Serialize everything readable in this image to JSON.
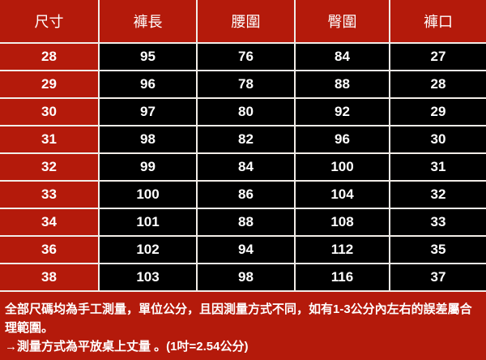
{
  "table": {
    "headers": [
      "尺寸",
      "褲長",
      "腰圍",
      "臀圍",
      "褲口"
    ],
    "rows": [
      [
        "28",
        "95",
        "76",
        "84",
        "27"
      ],
      [
        "29",
        "96",
        "78",
        "88",
        "28"
      ],
      [
        "30",
        "97",
        "80",
        "92",
        "29"
      ],
      [
        "31",
        "98",
        "82",
        "96",
        "30"
      ],
      [
        "32",
        "99",
        "84",
        "100",
        "31"
      ],
      [
        "33",
        "100",
        "86",
        "104",
        "32"
      ],
      [
        "34",
        "101",
        "88",
        "108",
        "33"
      ],
      [
        "36",
        "102",
        "94",
        "112",
        "35"
      ],
      [
        "38",
        "103",
        "98",
        "116",
        "37"
      ]
    ]
  },
  "notes": {
    "line1": "全部尺碼均為手工測量，單位公分，且因測量方式不同，如有1-3公分內左右的誤差屬合理範圍。",
    "line2": "→測量方式為平放桌上丈量 。(1吋=2.54公分)"
  },
  "colors": {
    "header_bg": "#b41a0b",
    "cell_bg": "#000000",
    "text": "#ffffff",
    "border": "#f2ede8"
  }
}
